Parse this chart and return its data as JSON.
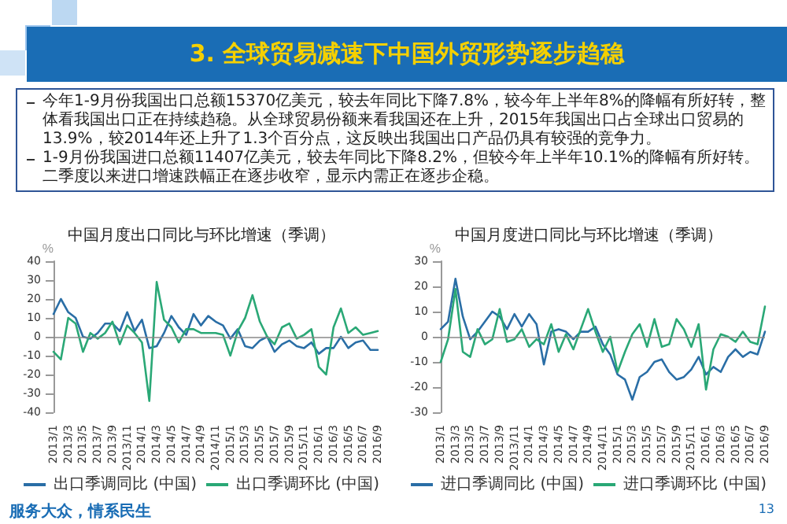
{
  "chart_data": [
    {
      "type": "other",
      "title": "3. 全球贸易减速下中国外贸形势逐步趋稳",
      "annotations": [
        "今年1-9月份我国出口总额15370亿美元，较去年同比下降7.8%，较今年上半年8%的降幅有所好转，整体看我国出口正在持续趋稳。从全球贸易份额来看我国还在上升，2015年我国出口占全球出口贸易的13.9%，较2014年还上升了1.3个百分点，这反映出我国出口产品仍具有较强的竞争力。",
        "1-9月份我国进口总额11407亿美元，较去年同比下降8.2%，但较今年上半年10.1%的降幅有所好转。二季度以来进口增速跌幅正在逐步收窄，显示内需正在逐步企稳。",
        "服务大众，情系民生",
        "13"
      ]
    },
    {
      "type": "line",
      "title": "中国月度出口同比与环比增速（季调）",
      "ylabel": "%",
      "categories": [
        "2013/1",
        null,
        "2013/3",
        null,
        "2013/5",
        null,
        "2013/7",
        null,
        "2013/9",
        null,
        "2013/11",
        null,
        "2014/1",
        null,
        "2014/3",
        null,
        "2014/5",
        null,
        "2014/7",
        null,
        "2014/9",
        null,
        "2014/11",
        null,
        "2015/1",
        null,
        "2015/3",
        null,
        "2015/5",
        null,
        "2015/7",
        null,
        "2015/9",
        null,
        "2015/11",
        null,
        "2016/1",
        null,
        "2016/3",
        null,
        "2016/5",
        null,
        "2016/7",
        null,
        "2016/9"
      ],
      "series": [
        {
          "name": "出口季调同比 (中国)",
          "color": "#2a6ea6",
          "values": [
            12,
            20,
            13,
            10,
            0,
            -1,
            2,
            7,
            7,
            3,
            13,
            3,
            9,
            -6,
            -5,
            2,
            11,
            5,
            1,
            12,
            6,
            11,
            8,
            6,
            -1,
            4,
            -5,
            -6,
            -2,
            0,
            -8,
            -4,
            -2,
            -5,
            -6,
            -3,
            -9,
            -6,
            -6,
            0,
            -6,
            -3,
            -2,
            -7,
            -7
          ]
        },
        {
          "name": "出口季调环比 (中国)",
          "color": "#2aa876",
          "values": [
            -8,
            -12,
            10,
            7,
            -8,
            2,
            -1,
            2,
            8,
            -4,
            6,
            2,
            -3,
            -34,
            29,
            9,
            5,
            -3,
            4,
            4,
            2,
            2,
            2,
            1,
            -10,
            3,
            10,
            22,
            8,
            0,
            -4,
            5,
            7,
            -1,
            1,
            4,
            -16,
            -20,
            5,
            15,
            2,
            5,
            1,
            2,
            3
          ]
        }
      ],
      "ylim": [
        -40,
        40
      ],
      "yticks": [
        -40,
        -30,
        -20,
        -10,
        0,
        10,
        20,
        30,
        40
      ],
      "ref_lines": [
        {
          "axis": "y",
          "value": 0
        }
      ],
      "legend": "bottom",
      "marker": "none",
      "line_style": "solid"
    },
    {
      "type": "line",
      "title": "中国月度进口同比与环比增速（季调）",
      "ylabel": "%",
      "categories": [
        "2013/1",
        null,
        "2013/3",
        null,
        "2013/5",
        null,
        "2013/7",
        null,
        "2013/9",
        null,
        "2013/11",
        null,
        "2014/1",
        null,
        "2014/3",
        null,
        "2014/5",
        null,
        "2014/7",
        null,
        "2014/9",
        null,
        "2014/11",
        null,
        "2015/1",
        null,
        "2015/3",
        null,
        "2015/5",
        null,
        "2015/7",
        null,
        "2015/9",
        null,
        "2015/11",
        null,
        "2016/1",
        null,
        "2016/3",
        null,
        "2016/5",
        null,
        "2016/7",
        null,
        "2016/9"
      ],
      "series": [
        {
          "name": "进口季调同比 (中国)",
          "color": "#2a6ea6",
          "values": [
            3,
            6,
            23,
            8,
            -1,
            2,
            6,
            10,
            8,
            3,
            9,
            4,
            9,
            5,
            -11,
            2,
            3,
            2,
            -1,
            2,
            2,
            4,
            -3,
            -7,
            -15,
            -17,
            -25,
            -16,
            -14,
            -10,
            -9,
            -14,
            -17,
            -16,
            -13,
            -8,
            -15,
            -12,
            -14,
            -8,
            -5,
            -8,
            -6,
            -7,
            2
          ]
        },
        {
          "name": "进口季调环比 (中国)",
          "color": "#2aa876",
          "values": [
            -10,
            -1,
            19,
            -6,
            -8,
            3,
            -3,
            -1,
            11,
            -2,
            -1,
            3,
            -4,
            -1,
            -3,
            5,
            -6,
            1,
            -5,
            3,
            11,
            2,
            -6,
            0,
            -14,
            -6,
            1,
            5,
            -4,
            7,
            -4,
            -3,
            7,
            3,
            -4,
            5,
            -21,
            -5,
            1,
            0,
            -2,
            2,
            -2,
            -3,
            12
          ]
        }
      ],
      "ylim": [
        -30,
        30
      ],
      "yticks": [
        -30,
        -20,
        -10,
        0,
        10,
        20,
        30
      ],
      "ref_lines": [
        {
          "axis": "y",
          "value": 0
        }
      ],
      "legend": "bottom",
      "marker": "none",
      "line_style": "solid"
    }
  ]
}
